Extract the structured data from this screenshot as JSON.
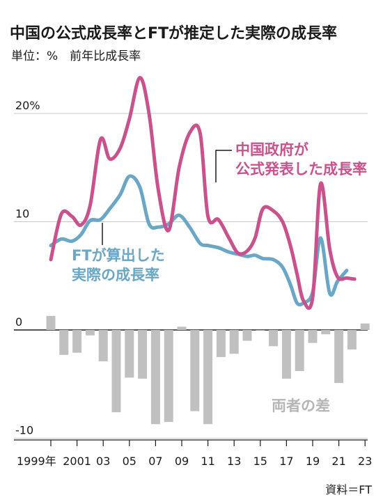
{
  "title": "中国の公式成長率とFTが推定した実際の成長率",
  "unit_label": "単位：%　前年比成長率",
  "source": "資料＝FT",
  "annotations": {
    "official_line1": "中国政府が",
    "official_line2": "公式発表した成長率",
    "ft_line1": "FTが算出した",
    "ft_line2": "実際の成長率",
    "diff": "両者の差"
  },
  "colors": {
    "official": "#c9528d",
    "ft": "#6aa6c6",
    "diff": "#c0c0c0",
    "grid": "#c8c8c8"
  },
  "chart_data": {
    "type": "line",
    "ylim": [
      -10.5,
      23.5
    ],
    "y_ticks": [
      {
        "value": 20,
        "label": "20%"
      },
      {
        "value": 10,
        "label": "10"
      },
      {
        "value": 0,
        "label": "0"
      },
      {
        "value": -10,
        "label": "-10"
      }
    ],
    "x_tick_labels": [
      {
        "x": 1999,
        "label": "1999年"
      },
      {
        "x": 2001,
        "label": "2001"
      },
      {
        "x": 2003,
        "label": "03"
      },
      {
        "x": 2005,
        "label": "05"
      },
      {
        "x": 2007,
        "label": "07"
      },
      {
        "x": 2009,
        "label": "09"
      },
      {
        "x": 2011,
        "label": "11"
      },
      {
        "x": 2013,
        "label": "13"
      },
      {
        "x": 2015,
        "label": "15"
      },
      {
        "x": 2017,
        "label": "17"
      },
      {
        "x": 2019,
        "label": "19"
      },
      {
        "x": 2021,
        "label": "21"
      },
      {
        "x": 2023,
        "label": "23"
      }
    ],
    "series": [
      {
        "name": "中国政府が公式発表した成長率",
        "points": [
          [
            1999.0,
            6.5
          ],
          [
            1999.8,
            10.7
          ],
          [
            2000.6,
            10.5
          ],
          [
            2001.3,
            9.7
          ],
          [
            2002.0,
            11.5
          ],
          [
            2002.8,
            17.6
          ],
          [
            2003.5,
            15.8
          ],
          [
            2004.3,
            16.8
          ],
          [
            2005.0,
            19.5
          ],
          [
            2005.8,
            23.3
          ],
          [
            2006.5,
            20.0
          ],
          [
            2007.2,
            13.0
          ],
          [
            2008.0,
            9.2
          ],
          [
            2008.8,
            15.0
          ],
          [
            2009.6,
            18.2
          ],
          [
            2010.4,
            18.2
          ],
          [
            2011.0,
            10.5
          ],
          [
            2011.8,
            10.2
          ],
          [
            2012.6,
            8.5
          ],
          [
            2013.3,
            7.1
          ],
          [
            2014.0,
            7.3
          ],
          [
            2014.6,
            8.5
          ],
          [
            2015.2,
            11.2
          ],
          [
            2016.0,
            11.0
          ],
          [
            2016.7,
            10.0
          ],
          [
            2017.3,
            7.8
          ],
          [
            2017.8,
            5.2
          ],
          [
            2018.3,
            2.7
          ],
          [
            2019.0,
            3.0
          ],
          [
            2019.6,
            13.5
          ],
          [
            2020.3,
            7.5
          ],
          [
            2020.9,
            4.9
          ],
          [
            2021.6,
            4.8
          ],
          [
            2022.2,
            4.7
          ]
        ]
      },
      {
        "name": "FTが算出した実際の成長率",
        "points": [
          [
            1999.0,
            7.8
          ],
          [
            1999.8,
            8.4
          ],
          [
            2000.6,
            8.2
          ],
          [
            2001.3,
            8.8
          ],
          [
            2002.0,
            10.1
          ],
          [
            2002.8,
            10.2
          ],
          [
            2003.5,
            11.2
          ],
          [
            2004.3,
            12.5
          ],
          [
            2005.0,
            14.2
          ],
          [
            2005.8,
            13.2
          ],
          [
            2006.5,
            9.8
          ],
          [
            2007.2,
            9.5
          ],
          [
            2008.0,
            9.8
          ],
          [
            2008.8,
            10.6
          ],
          [
            2009.6,
            9.5
          ],
          [
            2010.4,
            8.0
          ],
          [
            2011.0,
            7.8
          ],
          [
            2011.8,
            7.6
          ],
          [
            2012.6,
            7.2
          ],
          [
            2013.3,
            7.0
          ],
          [
            2014.0,
            6.8
          ],
          [
            2014.6,
            6.9
          ],
          [
            2015.2,
            6.6
          ],
          [
            2016.0,
            6.5
          ],
          [
            2016.7,
            5.8
          ],
          [
            2017.3,
            4.2
          ],
          [
            2017.8,
            2.5
          ],
          [
            2018.3,
            2.5
          ],
          [
            2019.0,
            3.5
          ],
          [
            2019.6,
            8.5
          ],
          [
            2020.3,
            3.4
          ],
          [
            2020.9,
            4.5
          ],
          [
            2021.6,
            5.5
          ]
        ]
      }
    ],
    "difference_bars": [
      {
        "x": 1999,
        "value": 1.3
      },
      {
        "x": 2000,
        "value": -2.3
      },
      {
        "x": 2001,
        "value": -2.1
      },
      {
        "x": 2002,
        "value": -0.5
      },
      {
        "x": 2003,
        "value": -2.9
      },
      {
        "x": 2004,
        "value": -7.6
      },
      {
        "x": 2005,
        "value": -4.4
      },
      {
        "x": 2006,
        "value": -4.5
      },
      {
        "x": 2007,
        "value": -8.7
      },
      {
        "x": 2008,
        "value": -8.5
      },
      {
        "x": 2009,
        "value": 0.3
      },
      {
        "x": 2010,
        "value": -7.5
      },
      {
        "x": 2011,
        "value": -8.7
      },
      {
        "x": 2012,
        "value": -2.5
      },
      {
        "x": 2013,
        "value": -2.2
      },
      {
        "x": 2014,
        "value": -1.0
      },
      {
        "x": 2015,
        "value": 0.0
      },
      {
        "x": 2016,
        "value": -1.5
      },
      {
        "x": 2017,
        "value": -4.5
      },
      {
        "x": 2018,
        "value": -3.8
      },
      {
        "x": 2019,
        "value": -1.2
      },
      {
        "x": 2020,
        "value": -0.4
      },
      {
        "x": 2021,
        "value": -4.9
      },
      {
        "x": 2022,
        "value": -1.8
      },
      {
        "x": 2023,
        "value": 0.6
      }
    ]
  }
}
